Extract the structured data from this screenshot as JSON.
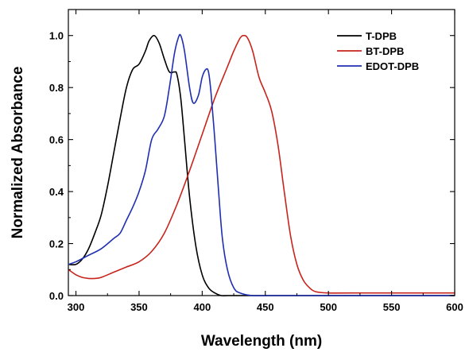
{
  "chart_data": {
    "type": "line",
    "xlabel": "Wavelength (nm)",
    "ylabel": "Normalized Absorbance",
    "xlim": [
      294,
      600
    ],
    "ylim": [
      0,
      1.1
    ],
    "x_ticks": [
      300,
      350,
      400,
      450,
      500,
      550,
      600
    ],
    "x_tick_labels": [
      "300",
      "350",
      "400",
      "450",
      "500",
      "550",
      "600"
    ],
    "y_ticks": [
      0.0,
      0.2,
      0.4,
      0.6,
      0.8,
      1.0
    ],
    "y_tick_labels": [
      "0.0",
      "0.2",
      "0.4",
      "0.6",
      "0.8",
      "1.0"
    ],
    "grid": false,
    "legend_position": "top-right",
    "series": [
      {
        "name": "T-DPB",
        "color": "#000000",
        "x": [
          294,
          300,
          305,
          310,
          315,
          320,
          325,
          330,
          335,
          340,
          345,
          350,
          355,
          358,
          362,
          366,
          370,
          374,
          378,
          380,
          383,
          386,
          390,
          395,
          400,
          405,
          410,
          415,
          420,
          430,
          450,
          500,
          600
        ],
        "y": [
          0.12,
          0.12,
          0.14,
          0.18,
          0.24,
          0.31,
          0.42,
          0.55,
          0.68,
          0.8,
          0.87,
          0.89,
          0.94,
          0.98,
          1.0,
          0.97,
          0.91,
          0.86,
          0.86,
          0.85,
          0.76,
          0.6,
          0.38,
          0.19,
          0.08,
          0.03,
          0.01,
          0.0,
          0.0,
          0.0,
          0.0,
          0.0,
          0.0
        ]
      },
      {
        "name": "BT-DPB",
        "color": "#c8241c",
        "x": [
          294,
          300,
          305,
          310,
          315,
          320,
          330,
          340,
          350,
          360,
          370,
          380,
          390,
          400,
          410,
          420,
          425,
          430,
          433,
          436,
          440,
          445,
          450,
          455,
          460,
          465,
          470,
          475,
          480,
          485,
          490,
          500,
          520,
          600
        ],
        "y": [
          0.1,
          0.08,
          0.07,
          0.066,
          0.066,
          0.07,
          0.09,
          0.11,
          0.13,
          0.17,
          0.24,
          0.35,
          0.48,
          0.62,
          0.76,
          0.88,
          0.94,
          0.99,
          1.0,
          0.99,
          0.94,
          0.84,
          0.78,
          0.71,
          0.58,
          0.4,
          0.23,
          0.12,
          0.06,
          0.03,
          0.015,
          0.01,
          0.01,
          0.01
        ]
      },
      {
        "name": "EDOT-DPB",
        "color": "#1f2fb0",
        "x": [
          294,
          300,
          310,
          320,
          330,
          335,
          340,
          345,
          350,
          355,
          360,
          365,
          370,
          374,
          378,
          381,
          383,
          386,
          390,
          393,
          397,
          400,
          403,
          405,
          407,
          410,
          413,
          416,
          420,
          425,
          430,
          440,
          460,
          600
        ],
        "y": [
          0.12,
          0.13,
          0.155,
          0.18,
          0.22,
          0.24,
          0.29,
          0.34,
          0.4,
          0.48,
          0.6,
          0.64,
          0.69,
          0.8,
          0.93,
          0.99,
          1.0,
          0.94,
          0.8,
          0.74,
          0.77,
          0.84,
          0.87,
          0.86,
          0.78,
          0.6,
          0.4,
          0.22,
          0.1,
          0.03,
          0.01,
          0.0,
          0.0,
          0.0
        ]
      }
    ]
  }
}
